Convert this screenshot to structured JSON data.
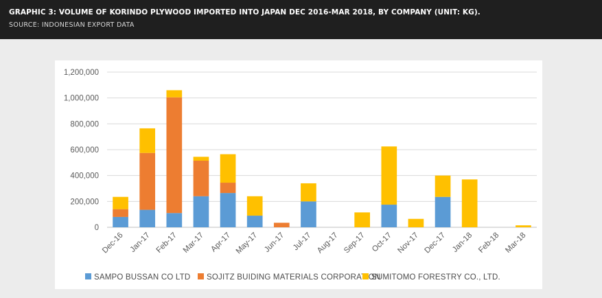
{
  "header": {
    "title": "GRAPHIC 3: VOLUME OF KORINDO PLYWOOD IMPORTED INTO JAPAN DEC 2016-MAR 2018, BY COMPANY (UNIT: KG).",
    "source": "SOURCE: INDONESIAN EXPORT DATA"
  },
  "chart_data": {
    "type": "bar",
    "stacked": true,
    "title": "",
    "xlabel": "",
    "ylabel": "",
    "ylim": [
      0,
      1200000
    ],
    "yticks": [
      0,
      200000,
      400000,
      600000,
      800000,
      1000000,
      1200000
    ],
    "ytick_labels": [
      "0",
      "200,000",
      "400,000",
      "600,000",
      "800,000",
      "1,000,000",
      "1,200,000"
    ],
    "grid": true,
    "legend_position": "bottom",
    "categories": [
      "Dec-16",
      "Jan-17",
      "Feb-17",
      "Mar-17",
      "Apr-17",
      "May-17",
      "Jun-17",
      "Jul-17",
      "Aug-17",
      "Sep-17",
      "Oct-17",
      "Nov-17",
      "Dec-17",
      "Jan-18",
      "Feb-18",
      "Mar-18"
    ],
    "series": [
      {
        "name": "SAMPO BUSSAN CO LTD",
        "color": "#5b9bd5",
        "values": [
          80000,
          135000,
          110000,
          240000,
          265000,
          90000,
          0,
          200000,
          0,
          0,
          175000,
          0,
          235000,
          0,
          0,
          0
        ]
      },
      {
        "name": "SOJITZ BUIDING MATERIALS CORPORATION",
        "color": "#ed7d31",
        "values": [
          60000,
          440000,
          895000,
          275000,
          80000,
          0,
          35000,
          0,
          0,
          0,
          0,
          0,
          0,
          0,
          0,
          0
        ]
      },
      {
        "name": "SUMITOMO FORESTRY CO., LTD.",
        "color": "#ffc000",
        "values": [
          95000,
          190000,
          55000,
          30000,
          220000,
          150000,
          0,
          140000,
          0,
          115000,
          450000,
          65000,
          165000,
          370000,
          0,
          15000
        ]
      }
    ]
  }
}
